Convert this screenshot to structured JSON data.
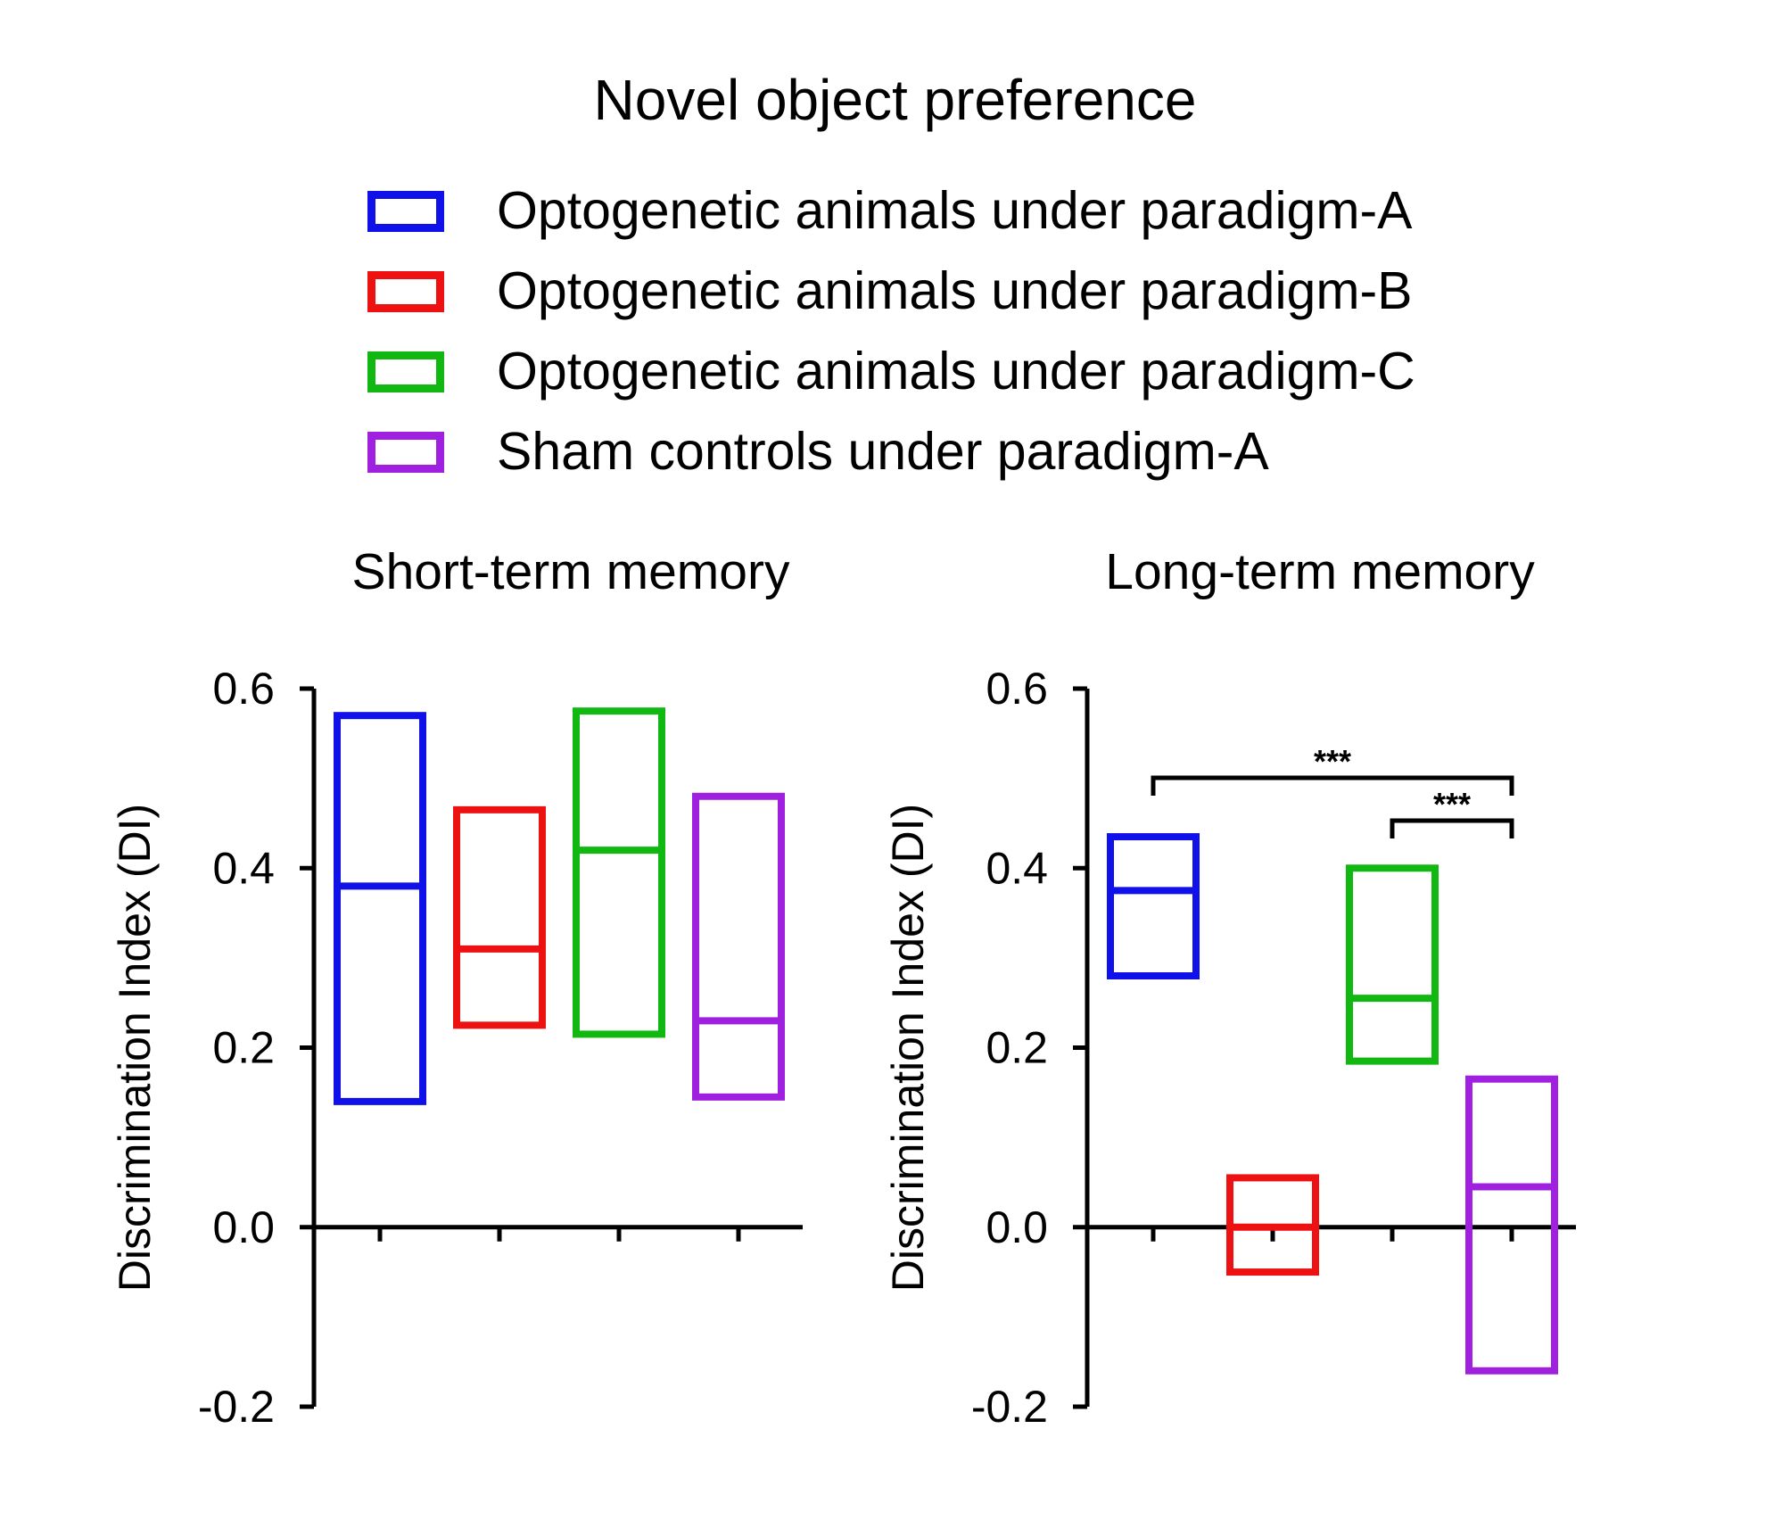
{
  "title": "Novel object preference",
  "colors": {
    "paradigm_a": "#1010e8",
    "paradigm_b": "#ee1111",
    "paradigm_c": "#11b811",
    "sham": "#a020e0"
  },
  "legend": [
    {
      "label": "Optogenetic animals under paradigm-A",
      "color": "#1010e8"
    },
    {
      "label": "Optogenetic animals under paradigm-B",
      "color": "#ee1111"
    },
    {
      "label": "Optogenetic animals under paradigm-C",
      "color": "#11b811"
    },
    {
      "label": "Sham controls under paradigm-A",
      "color": "#a020e0"
    }
  ],
  "chart_data": [
    {
      "type": "box",
      "title": "Short-term memory",
      "ylabel": "Discrimination Index (DI)",
      "ylim": [
        -0.2,
        0.6
      ],
      "yticks": [
        "-0.2",
        "0.0",
        "0.2",
        "0.4",
        "0.6"
      ],
      "series": [
        {
          "name": "Optogenetic animals under paradigm-A",
          "low": 0.14,
          "mid": 0.38,
          "high": 0.57
        },
        {
          "name": "Optogenetic animals under paradigm-B",
          "low": 0.225,
          "mid": 0.31,
          "high": 0.465
        },
        {
          "name": "Optogenetic animals under paradigm-C",
          "low": 0.215,
          "mid": 0.42,
          "high": 0.575
        },
        {
          "name": "Sham controls under paradigm-A",
          "low": 0.145,
          "mid": 0.23,
          "high": 0.48
        }
      ],
      "annotations": []
    },
    {
      "type": "box",
      "title": "Long-term memory",
      "ylabel": "Discrimination Index (DI)",
      "ylim": [
        -0.2,
        0.6
      ],
      "yticks": [
        "-0.2",
        "0.0",
        "0.2",
        "0.4",
        "0.6"
      ],
      "series": [
        {
          "name": "Optogenetic animals under paradigm-A",
          "low": 0.28,
          "mid": 0.375,
          "high": 0.435
        },
        {
          "name": "Optogenetic animals under paradigm-B",
          "low": -0.05,
          "mid": 0.0,
          "high": 0.055
        },
        {
          "name": "Optogenetic animals under paradigm-C",
          "low": 0.185,
          "mid": 0.255,
          "high": 0.4
        },
        {
          "name": "Sham controls under paradigm-A",
          "low": -0.16,
          "mid": 0.045,
          "high": 0.165
        }
      ],
      "annotations": [
        {
          "text": "***",
          "from": 0,
          "to": 3
        },
        {
          "text": "***",
          "from": 2,
          "to": 3
        }
      ]
    }
  ]
}
